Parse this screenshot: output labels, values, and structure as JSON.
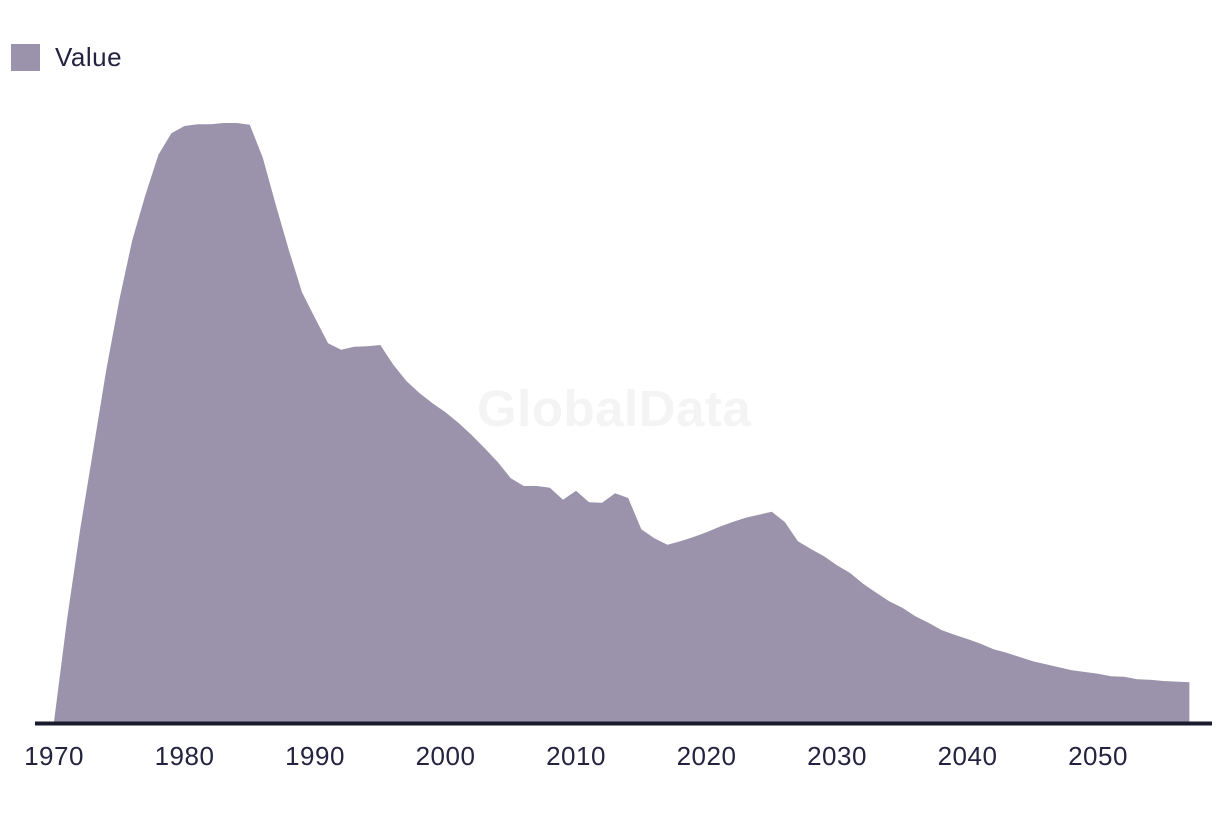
{
  "legend": {
    "label": "Value"
  },
  "watermark": "GlobalData",
  "colors": {
    "area": "#9a93ab",
    "axis_line": "#1b1b2e",
    "text": "#232340",
    "watermark": "#f4f4f5",
    "background": "#ffffff"
  },
  "chart_data": {
    "type": "area",
    "title": "",
    "xlabel": "",
    "ylabel": "",
    "grid": false,
    "legend_position": "top-left",
    "x_ticks": [
      "1970",
      "1980",
      "1990",
      "2000",
      "2010",
      "2020",
      "2030",
      "2040",
      "2050"
    ],
    "x_range": [
      1970,
      2057
    ],
    "ylim": [
      0,
      105
    ],
    "y_axis_visible": false,
    "series": [
      {
        "name": "Value",
        "x": [
          1970,
          1971,
          1972,
          1973,
          1974,
          1975,
          1976,
          1977,
          1978,
          1979,
          1980,
          1981,
          1982,
          1983,
          1984,
          1985,
          1986,
          1987,
          1988,
          1989,
          1990,
          1991,
          1992,
          1993,
          1994,
          1995,
          1996,
          1997,
          1998,
          1999,
          2000,
          2001,
          2002,
          2003,
          2004,
          2005,
          2006,
          2007,
          2008,
          2009,
          2010,
          2011,
          2012,
          2013,
          2014,
          2015,
          2016,
          2017,
          2018,
          2019,
          2020,
          2021,
          2022,
          2023,
          2024,
          2025,
          2026,
          2027,
          2028,
          2029,
          2030,
          2031,
          2032,
          2033,
          2034,
          2035,
          2036,
          2037,
          2038,
          2039,
          2040,
          2041,
          2042,
          2043,
          2044,
          2045,
          2046,
          2047,
          2048,
          2049,
          2050,
          2051,
          2052,
          2053,
          2054,
          2055,
          2056,
          2057
        ],
        "values": [
          0.2,
          17.2,
          32.2,
          45.5,
          58.8,
          70.5,
          80.5,
          88.0,
          94.7,
          98.3,
          99.5,
          99.8,
          99.8,
          100.0,
          100.0,
          99.7,
          94.2,
          86.3,
          78.8,
          71.8,
          67.5,
          63.3,
          62.2,
          62.7,
          62.8,
          63.0,
          59.7,
          57.0,
          55.0,
          53.3,
          51.8,
          50.0,
          48.0,
          45.8,
          43.5,
          40.8,
          39.5,
          39.5,
          39.2,
          37.2,
          38.7,
          36.8,
          36.7,
          38.3,
          37.5,
          32.3,
          30.8,
          29.7,
          30.3,
          31.0,
          31.8,
          32.7,
          33.5,
          34.2,
          34.7,
          35.2,
          33.5,
          30.3,
          29.0,
          27.8,
          26.3,
          25.0,
          23.2,
          21.7,
          20.3,
          19.2,
          17.8,
          16.7,
          15.5,
          14.7,
          14.0,
          13.2,
          12.3,
          11.7,
          11.0,
          10.3,
          9.8,
          9.3,
          8.8,
          8.5,
          8.2,
          7.8,
          7.7,
          7.3,
          7.2,
          7.0,
          6.9,
          6.8
        ]
      }
    ]
  }
}
